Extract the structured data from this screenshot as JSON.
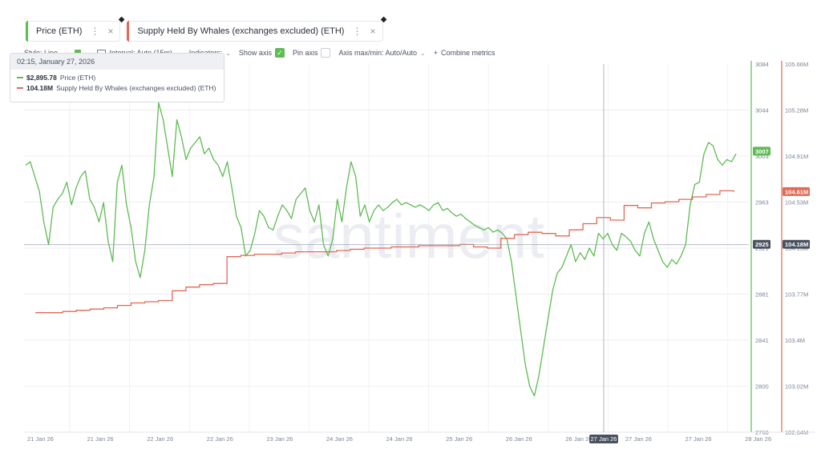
{
  "tabs": [
    {
      "label": "Price (ETH)",
      "color": "#5fbb53"
    },
    {
      "label": "Supply Held By Whales (exchanges excluded) (ETH)",
      "color": "#e06a57"
    }
  ],
  "toolbar": {
    "style": "Style: Line",
    "interval": "Interval: Auto (15m)",
    "indicators": "Indicators:",
    "show_axis": "Show axis",
    "pin_axis": "Pin axis",
    "axis_maxmin": "Axis max/min: Auto/Auto",
    "combine": "Combine metrics"
  },
  "tooltip": {
    "date": "02:15, January 27, 2026",
    "price_value": "$2,895.78",
    "price_label": "Price (ETH)",
    "whale_value": "104.18M",
    "whale_label": "Supply Held By Whales (exchanges excluded) (ETH)"
  },
  "watermark": "santiment",
  "chart_data": {
    "type": "line",
    "x_ticks": [
      "21 Jan 26",
      "21 Jan 26",
      "22 Jan 26",
      "22 Jan 26",
      "23 Jan 26",
      "24 Jan 26",
      "24 Jan 26",
      "25 Jan 26",
      "26 Jan 26",
      "26 Jan 26",
      "27 Jan 26",
      "27 Jan 26",
      "28 Jan 26"
    ],
    "crosshair_x_label": "27 Jan 26",
    "price_axis": {
      "ticks": [
        "3084",
        "3044",
        "3003",
        "2963",
        "2921",
        "2881",
        "2841",
        "2800",
        "2760"
      ],
      "ylim": [
        2760,
        3084
      ]
    },
    "whale_axis": {
      "ticks": [
        "105.66M",
        "105.28M",
        "104.91M",
        "104.53M",
        "104.15M",
        "103.77M",
        "103.4M",
        "103.02M",
        "102.64M"
      ],
      "ylim": [
        102.64,
        105.66
      ]
    },
    "badges": {
      "price_last": "3007",
      "whale_last": "104.61M",
      "price_cross": "2925",
      "whale_cross": "104.18M"
    },
    "series": [
      {
        "name": "Price (ETH)",
        "color": "#5fbb53",
        "axis": "left",
        "values": [
          2995,
          2998,
          2985,
          2972,
          2944,
          2925,
          2958,
          2965,
          2970,
          2980,
          2960,
          2975,
          2985,
          2990,
          2965,
          2958,
          2945,
          2962,
          2928,
          2910,
          2980,
          2995,
          2960,
          2940,
          2910,
          2896,
          2920,
          2960,
          2985,
          3050,
          3035,
          3010,
          2985,
          3035,
          3020,
          3000,
          3010,
          3015,
          3020,
          3005,
          3010,
          3000,
          2995,
          2985,
          2998,
          2975,
          2950,
          2940,
          2915,
          2920,
          2935,
          2955,
          2950,
          2940,
          2938,
          2950,
          2960,
          2955,
          2948,
          2965,
          2970,
          2975,
          2955,
          2945,
          2960,
          2925,
          2915,
          2930,
          2965,
          2945,
          2975,
          2998,
          2985,
          2950,
          2960,
          2945,
          2955,
          2960,
          2955,
          2958,
          2962,
          2965,
          2960,
          2962,
          2960,
          2958,
          2960,
          2958,
          2955,
          2960,
          2962,
          2955,
          2957,
          2953,
          2950,
          2952,
          2948,
          2945,
          2942,
          2940,
          2938,
          2940,
          2936,
          2938,
          2935,
          2930,
          2910,
          2880,
          2850,
          2820,
          2800,
          2792,
          2810,
          2835,
          2860,
          2885,
          2900,
          2905,
          2915,
          2925,
          2910,
          2918,
          2912,
          2922,
          2915,
          2935,
          2930,
          2935,
          2925,
          2920,
          2935,
          2932,
          2928,
          2920,
          2915,
          2935,
          2945,
          2930,
          2920,
          2910,
          2905,
          2912,
          2908,
          2915,
          2925,
          2960,
          2978,
          2980,
          3005,
          3015,
          3012,
          3000,
          2995,
          3000,
          2998,
          3005
        ]
      },
      {
        "name": "Supply Held By Whales (exchanges excluded) (ETH)",
        "color": "#e06a57",
        "axis": "right",
        "values": [
          103.62,
          103.62,
          103.63,
          103.64,
          103.65,
          103.66,
          103.68,
          103.7,
          103.71,
          103.72,
          103.8,
          103.83,
          103.85,
          103.86,
          104.08,
          104.09,
          104.1,
          104.1,
          104.11,
          104.12,
          104.12,
          104.12,
          104.13,
          104.14,
          104.15,
          104.15,
          104.16,
          104.16,
          104.17,
          104.17,
          104.17,
          104.18,
          104.16,
          104.15,
          104.23,
          104.26,
          104.28,
          104.27,
          104.25,
          104.3,
          104.35,
          104.4,
          104.38,
          104.5,
          104.48,
          104.52,
          104.53,
          104.55,
          104.57,
          104.59,
          104.62,
          104.61
        ]
      }
    ]
  }
}
